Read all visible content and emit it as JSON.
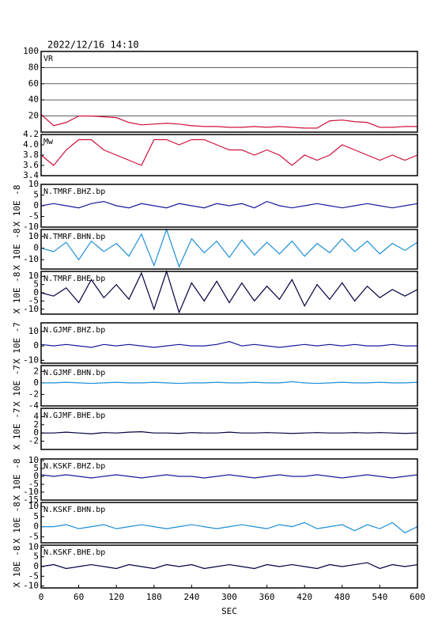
{
  "chart_data": [
    {
      "type": "line",
      "title": "2022/12/16 14:10",
      "grid": true,
      "xlim": [
        0,
        600
      ],
      "ylim": [
        0,
        100
      ],
      "yticks": [
        20,
        40,
        60,
        80,
        100
      ],
      "x": [
        0,
        20,
        40,
        60,
        80,
        100,
        120,
        140,
        160,
        180,
        200,
        220,
        240,
        260,
        280,
        300,
        320,
        340,
        360,
        380,
        400,
        420,
        440,
        460,
        480,
        500,
        520,
        540,
        560,
        580,
        600
      ],
      "series": [
        {
          "name": "VR",
          "color": "#d0103a",
          "values": [
            22,
            8,
            12,
            20,
            20,
            19,
            18,
            12,
            9,
            10,
            11,
            10,
            8,
            7,
            7,
            6,
            6,
            7,
            6,
            7,
            6,
            5,
            5,
            14,
            15,
            13,
            12,
            6,
            6,
            7,
            7
          ]
        }
      ]
    },
    {
      "type": "line",
      "xlim": [
        0,
        600
      ],
      "ylim": [
        3.4,
        4.2
      ],
      "yticks": [
        3.4,
        3.6,
        3.8,
        {
          "value": 4,
          "label": "4.0"
        },
        4.2
      ],
      "x": [
        0,
        20,
        40,
        60,
        80,
        100,
        120,
        140,
        160,
        180,
        200,
        220,
        240,
        260,
        280,
        300,
        320,
        340,
        360,
        380,
        400,
        420,
        440,
        460,
        480,
        500,
        520,
        540,
        560,
        580,
        600
      ],
      "series": [
        {
          "name": "Mw",
          "color": "#d0103a",
          "values": [
            3.8,
            3.6,
            3.9,
            4.1,
            4.1,
            3.9,
            3.8,
            3.7,
            3.6,
            4.1,
            4.1,
            4.0,
            4.1,
            4.1,
            4.0,
            3.9,
            3.9,
            3.8,
            3.9,
            3.8,
            3.6,
            3.8,
            3.7,
            3.8,
            4.0,
            3.9,
            3.8,
            3.7,
            3.8,
            3.7,
            3.8
          ]
        }
      ]
    },
    {
      "type": "line",
      "ylabel": "X 10E -8",
      "xlim": [
        0,
        600
      ],
      "ylim": [
        -10,
        10
      ],
      "yticks": [
        -10,
        -5,
        0,
        5,
        10
      ],
      "x": [
        0,
        20,
        40,
        60,
        80,
        100,
        120,
        140,
        160,
        180,
        200,
        220,
        240,
        260,
        280,
        300,
        320,
        340,
        360,
        380,
        400,
        420,
        440,
        460,
        480,
        500,
        520,
        540,
        560,
        580,
        600
      ],
      "series": [
        {
          "name": "N.TMRF.BHZ.bp",
          "color": "#1a1a9c",
          "values": [
            0,
            1,
            0,
            -1,
            1,
            2,
            0,
            -1,
            1,
            0,
            -1,
            1,
            0,
            -1,
            1,
            0,
            1,
            -1,
            2,
            0,
            -1,
            0,
            1,
            0,
            -1,
            0,
            1,
            0,
            -1,
            0,
            1
          ]
        }
      ]
    },
    {
      "type": "line",
      "ylabel": "X 10E -8",
      "xlim": [
        0,
        600
      ],
      "ylim": [
        -18,
        16
      ],
      "yticks": [
        -10,
        0,
        10
      ],
      "x": [
        0,
        20,
        40,
        60,
        80,
        100,
        120,
        140,
        160,
        180,
        200,
        220,
        240,
        260,
        280,
        300,
        320,
        340,
        360,
        380,
        400,
        420,
        440,
        460,
        480,
        500,
        520,
        540,
        560,
        580,
        600
      ],
      "series": [
        {
          "name": "N.TMRF.BHN.bp",
          "color": "#1e8fd6",
          "values": [
            0,
            -3,
            5,
            -10,
            6,
            -3,
            4,
            -7,
            12,
            -15,
            16,
            -16,
            8,
            -4,
            6,
            -8,
            7,
            -6,
            5,
            -5,
            6,
            -7,
            4,
            -4,
            8,
            -3,
            6,
            -5,
            4,
            -2,
            5
          ]
        }
      ]
    },
    {
      "type": "line",
      "ylabel": "X 10E -8",
      "xlim": [
        0,
        600
      ],
      "ylim": [
        -13,
        13
      ],
      "yticks": [
        -10,
        -5,
        0,
        5,
        10
      ],
      "x": [
        0,
        20,
        40,
        60,
        80,
        100,
        120,
        140,
        160,
        180,
        200,
        220,
        240,
        260,
        280,
        300,
        320,
        340,
        360,
        380,
        400,
        420,
        440,
        460,
        480,
        500,
        520,
        540,
        560,
        580,
        600
      ],
      "series": [
        {
          "name": "N.TMRF.BHE.bp",
          "color": "#000040",
          "values": [
            0,
            -2,
            3,
            -6,
            8,
            -3,
            5,
            -4,
            12,
            -10,
            13,
            -12,
            6,
            -5,
            7,
            -6,
            6,
            -5,
            4,
            -4,
            8,
            -8,
            5,
            -4,
            6,
            -5,
            4,
            -3,
            2,
            -2,
            2
          ]
        }
      ]
    },
    {
      "type": "line",
      "ylabel": "X 10E -7",
      "xlim": [
        0,
        600
      ],
      "ylim": [
        -12,
        16
      ],
      "yticks": [
        -10,
        0,
        10
      ],
      "x": [
        0,
        20,
        40,
        60,
        80,
        100,
        120,
        140,
        160,
        180,
        200,
        220,
        240,
        260,
        280,
        300,
        320,
        340,
        360,
        380,
        400,
        420,
        440,
        460,
        480,
        500,
        520,
        540,
        560,
        580,
        600
      ],
      "series": [
        {
          "name": "N.GJMF.BHZ.bp",
          "color": "#1a1a9c",
          "values": [
            1,
            0,
            1,
            0,
            -1,
            1,
            0,
            1,
            0,
            -1,
            0,
            1,
            0,
            0,
            1,
            3,
            0,
            1,
            0,
            -1,
            0,
            1,
            0,
            1,
            0,
            1,
            0,
            0,
            1,
            0,
            0
          ]
        }
      ]
    },
    {
      "type": "line",
      "ylabel": "X 10E -7",
      "xlim": [
        0,
        600
      ],
      "ylim": [
        -4,
        3
      ],
      "yticks": [
        -4,
        -2,
        0,
        2
      ],
      "x": [
        0,
        20,
        40,
        60,
        80,
        100,
        120,
        140,
        160,
        180,
        200,
        220,
        240,
        260,
        280,
        300,
        320,
        340,
        360,
        380,
        400,
        420,
        440,
        460,
        480,
        500,
        520,
        540,
        560,
        580,
        600
      ],
      "series": [
        {
          "name": "N.GJMF.BHN.bp",
          "color": "#1e8fd6",
          "values": [
            0,
            0,
            0.1,
            0,
            -0.1,
            0,
            0.1,
            0,
            0,
            0.1,
            0,
            -0.1,
            0,
            0,
            0.1,
            0,
            0,
            0.1,
            0,
            0,
            0.2,
            0,
            -0.1,
            0,
            0.1,
            0,
            0,
            0.1,
            0,
            0,
            0.1
          ]
        }
      ]
    },
    {
      "type": "line",
      "ylabel": "X 10E -7",
      "xlim": [
        0,
        600
      ],
      "ylim": [
        -4,
        6
      ],
      "yticks": [
        -2,
        0,
        2,
        4
      ],
      "x": [
        0,
        20,
        40,
        60,
        80,
        100,
        120,
        140,
        160,
        180,
        200,
        220,
        240,
        260,
        280,
        300,
        320,
        340,
        360,
        380,
        400,
        420,
        440,
        460,
        480,
        500,
        520,
        540,
        560,
        580,
        600
      ],
      "series": [
        {
          "name": "N.GJMF.BHE.bp",
          "color": "#000040",
          "values": [
            0,
            0,
            0.2,
            0,
            -0.2,
            0.1,
            0,
            0.2,
            0.3,
            0,
            0,
            -0.1,
            0.1,
            0,
            0,
            0.2,
            0,
            0,
            0.1,
            0,
            -0.1,
            0,
            0.1,
            0,
            0,
            0.1,
            0,
            0.1,
            0,
            -0.1,
            0
          ]
        }
      ]
    },
    {
      "type": "line",
      "ylabel": "X 10E -8",
      "xlim": [
        0,
        600
      ],
      "ylim": [
        -15,
        11
      ],
      "yticks": [
        -15,
        -10,
        -5,
        0,
        5,
        10
      ],
      "x": [
        0,
        20,
        40,
        60,
        80,
        100,
        120,
        140,
        160,
        180,
        200,
        220,
        240,
        260,
        280,
        300,
        320,
        340,
        360,
        380,
        400,
        420,
        440,
        460,
        480,
        500,
        520,
        540,
        560,
        580,
        600
      ],
      "series": [
        {
          "name": "N.KSKF.BHZ.bp",
          "color": "#1a1a9c",
          "values": [
            1,
            0,
            1,
            0,
            -1,
            0,
            1,
            0,
            -1,
            0,
            1,
            0,
            0,
            -1,
            0,
            1,
            0,
            -1,
            0,
            1,
            0,
            0,
            1,
            0,
            -1,
            0,
            1,
            0,
            -1,
            0,
            1
          ]
        }
      ]
    },
    {
      "type": "line",
      "ylabel": "X 10E -8",
      "xlim": [
        0,
        600
      ],
      "ylim": [
        -8,
        12
      ],
      "yticks": [
        -5,
        0,
        5,
        10
      ],
      "x": [
        0,
        20,
        40,
        60,
        80,
        100,
        120,
        140,
        160,
        180,
        200,
        220,
        240,
        260,
        280,
        300,
        320,
        340,
        360,
        380,
        400,
        420,
        440,
        460,
        480,
        500,
        520,
        540,
        560,
        580,
        600
      ],
      "series": [
        {
          "name": "N.KSKF.BHN.bp",
          "color": "#1e8fd6",
          "values": [
            0,
            0,
            1,
            -1,
            0,
            1,
            -1,
            0,
            1,
            0,
            -1,
            0,
            1,
            0,
            -1,
            0,
            1,
            0,
            -1,
            1,
            0,
            2,
            -1,
            0,
            1,
            -2,
            1,
            -1,
            2,
            -3,
            0
          ]
        }
      ]
    },
    {
      "type": "line",
      "ylabel": "X 10E -8",
      "xlabel": "SEC",
      "xlim": [
        0,
        600
      ],
      "ylim": [
        -11,
        11
      ],
      "yticks": [
        -10,
        -5,
        0,
        5,
        10
      ],
      "xticks": [
        0,
        60,
        120,
        180,
        240,
        300,
        360,
        420,
        480,
        540,
        600
      ],
      "x": [
        0,
        20,
        40,
        60,
        80,
        100,
        120,
        140,
        160,
        180,
        200,
        220,
        240,
        260,
        280,
        300,
        320,
        340,
        360,
        380,
        400,
        420,
        440,
        460,
        480,
        500,
        520,
        540,
        560,
        580,
        600
      ],
      "series": [
        {
          "name": "N.KSKF.BHE.bp",
          "color": "#000040",
          "values": [
            0,
            1,
            -1,
            0,
            1,
            0,
            -1,
            1,
            0,
            -1,
            1,
            0,
            1,
            -1,
            0,
            1,
            0,
            -1,
            1,
            0,
            1,
            0,
            -1,
            1,
            0,
            1,
            2,
            -1,
            1,
            0,
            1
          ]
        }
      ]
    }
  ]
}
